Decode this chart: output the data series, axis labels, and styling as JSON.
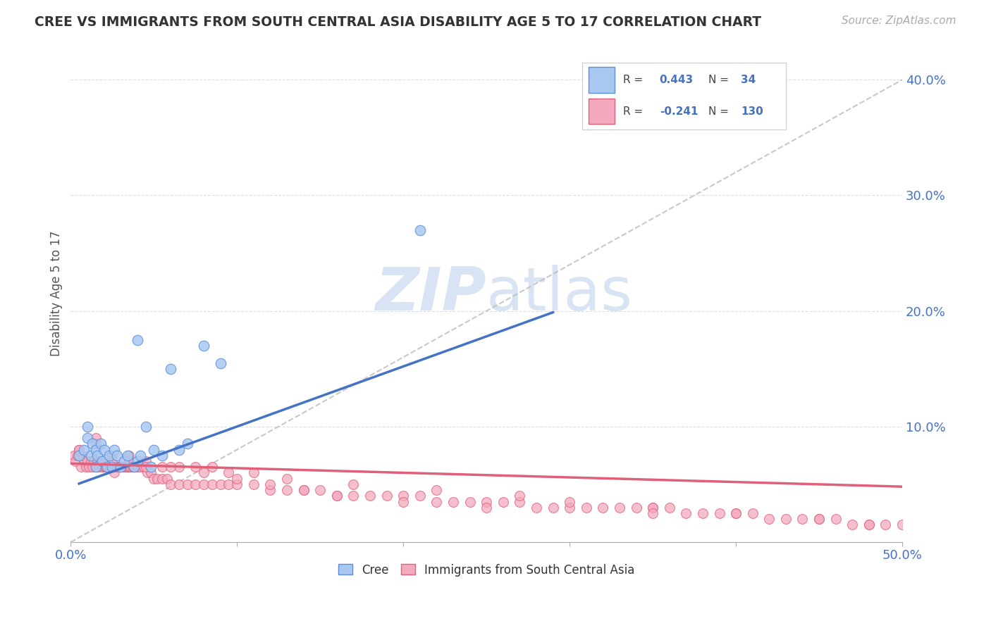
{
  "title": "CREE VS IMMIGRANTS FROM SOUTH CENTRAL ASIA DISABILITY AGE 5 TO 17 CORRELATION CHART",
  "source_text": "Source: ZipAtlas.com",
  "ylabel": "Disability Age 5 to 17",
  "xlim": [
    0.0,
    0.5
  ],
  "ylim": [
    0.0,
    0.43
  ],
  "cree_R": 0.443,
  "cree_N": 34,
  "immigrants_R": -0.241,
  "immigrants_N": 130,
  "cree_color": "#A8C8F0",
  "cree_edge_color": "#5B8DD9",
  "cree_line_color": "#4472C4",
  "immigrants_color": "#F4AABE",
  "immigrants_edge_color": "#E0607A",
  "immigrants_line_color": "#E0607A",
  "trend_line_color": "#BBBBBB",
  "legend_R_color": "#4472C4",
  "watermark_color": "#D8E4F4",
  "background_color": "#FFFFFF",
  "cree_x": [
    0.005,
    0.008,
    0.01,
    0.01,
    0.012,
    0.013,
    0.015,
    0.015,
    0.016,
    0.018,
    0.019,
    0.02,
    0.022,
    0.023,
    0.025,
    0.026,
    0.028,
    0.03,
    0.032,
    0.034,
    0.038,
    0.04,
    0.042,
    0.045,
    0.048,
    0.05,
    0.055,
    0.06,
    0.065,
    0.07,
    0.08,
    0.09,
    0.21,
    0.04
  ],
  "cree_y": [
    0.075,
    0.08,
    0.09,
    0.1,
    0.075,
    0.085,
    0.065,
    0.08,
    0.075,
    0.085,
    0.07,
    0.08,
    0.065,
    0.075,
    0.065,
    0.08,
    0.075,
    0.065,
    0.07,
    0.075,
    0.065,
    0.07,
    0.075,
    0.1,
    0.065,
    0.08,
    0.075,
    0.15,
    0.08,
    0.085,
    0.17,
    0.155,
    0.27,
    0.175
  ],
  "imm_x": [
    0.002,
    0.003,
    0.004,
    0.005,
    0.006,
    0.007,
    0.008,
    0.009,
    0.01,
    0.011,
    0.012,
    0.013,
    0.014,
    0.015,
    0.016,
    0.017,
    0.018,
    0.019,
    0.02,
    0.021,
    0.022,
    0.023,
    0.024,
    0.025,
    0.026,
    0.027,
    0.028,
    0.029,
    0.03,
    0.031,
    0.032,
    0.033,
    0.034,
    0.035,
    0.036,
    0.037,
    0.038,
    0.039,
    0.04,
    0.042,
    0.044,
    0.046,
    0.048,
    0.05,
    0.052,
    0.055,
    0.058,
    0.06,
    0.065,
    0.07,
    0.075,
    0.08,
    0.085,
    0.09,
    0.095,
    0.1,
    0.11,
    0.12,
    0.13,
    0.14,
    0.15,
    0.16,
    0.17,
    0.18,
    0.19,
    0.2,
    0.21,
    0.22,
    0.23,
    0.24,
    0.25,
    0.26,
    0.27,
    0.28,
    0.29,
    0.3,
    0.31,
    0.32,
    0.33,
    0.34,
    0.35,
    0.36,
    0.37,
    0.38,
    0.39,
    0.4,
    0.41,
    0.42,
    0.43,
    0.44,
    0.45,
    0.46,
    0.47,
    0.48,
    0.49,
    0.5,
    0.005,
    0.015,
    0.025,
    0.035,
    0.045,
    0.055,
    0.065,
    0.075,
    0.085,
    0.095,
    0.11,
    0.13,
    0.17,
    0.22,
    0.27,
    0.3,
    0.35,
    0.4,
    0.45,
    0.48,
    0.005,
    0.015,
    0.025,
    0.035,
    0.045,
    0.06,
    0.08,
    0.1,
    0.12,
    0.14,
    0.16,
    0.2,
    0.25,
    0.35
  ],
  "imm_y": [
    0.075,
    0.07,
    0.075,
    0.08,
    0.065,
    0.075,
    0.07,
    0.065,
    0.07,
    0.065,
    0.07,
    0.065,
    0.07,
    0.065,
    0.07,
    0.065,
    0.07,
    0.065,
    0.065,
    0.065,
    0.065,
    0.065,
    0.065,
    0.065,
    0.06,
    0.065,
    0.065,
    0.065,
    0.065,
    0.065,
    0.065,
    0.065,
    0.065,
    0.065,
    0.065,
    0.065,
    0.065,
    0.065,
    0.065,
    0.065,
    0.065,
    0.06,
    0.06,
    0.055,
    0.055,
    0.055,
    0.055,
    0.05,
    0.05,
    0.05,
    0.05,
    0.05,
    0.05,
    0.05,
    0.05,
    0.05,
    0.05,
    0.045,
    0.045,
    0.045,
    0.045,
    0.04,
    0.04,
    0.04,
    0.04,
    0.04,
    0.04,
    0.035,
    0.035,
    0.035,
    0.035,
    0.035,
    0.035,
    0.03,
    0.03,
    0.03,
    0.03,
    0.03,
    0.03,
    0.03,
    0.03,
    0.03,
    0.025,
    0.025,
    0.025,
    0.025,
    0.025,
    0.02,
    0.02,
    0.02,
    0.02,
    0.02,
    0.015,
    0.015,
    0.015,
    0.015,
    0.08,
    0.085,
    0.075,
    0.075,
    0.07,
    0.065,
    0.065,
    0.065,
    0.065,
    0.06,
    0.06,
    0.055,
    0.05,
    0.045,
    0.04,
    0.035,
    0.03,
    0.025,
    0.02,
    0.015,
    0.08,
    0.09,
    0.07,
    0.07,
    0.065,
    0.065,
    0.06,
    0.055,
    0.05,
    0.045,
    0.04,
    0.035,
    0.03,
    0.025
  ]
}
